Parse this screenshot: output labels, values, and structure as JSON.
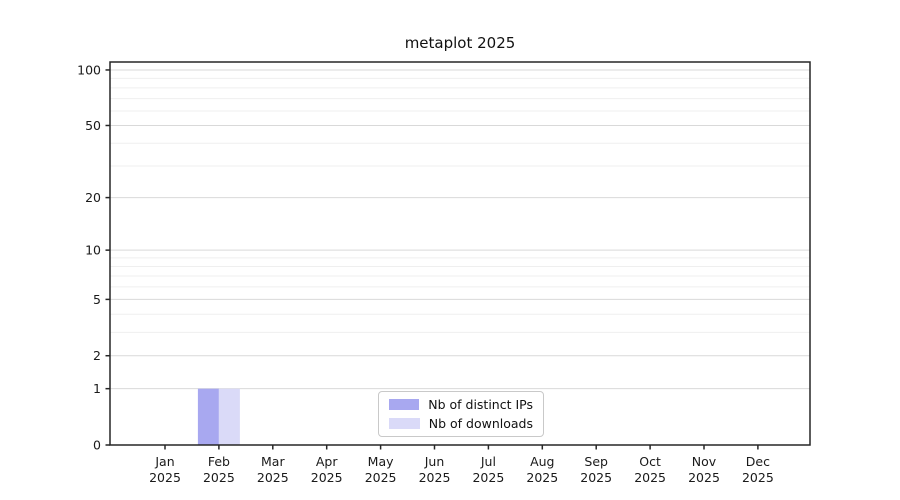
{
  "chart_data": {
    "type": "bar",
    "title": "metaplot 2025",
    "categories": [
      {
        "month": "Jan",
        "year": "2025"
      },
      {
        "month": "Feb",
        "year": "2025"
      },
      {
        "month": "Mar",
        "year": "2025"
      },
      {
        "month": "Apr",
        "year": "2025"
      },
      {
        "month": "May",
        "year": "2025"
      },
      {
        "month": "Jun",
        "year": "2025"
      },
      {
        "month": "Jul",
        "year": "2025"
      },
      {
        "month": "Aug",
        "year": "2025"
      },
      {
        "month": "Sep",
        "year": "2025"
      },
      {
        "month": "Oct",
        "year": "2025"
      },
      {
        "month": "Nov",
        "year": "2025"
      },
      {
        "month": "Dec",
        "year": "2025"
      }
    ],
    "series": [
      {
        "name": "Nb of distinct IPs",
        "color": "#a8a8f0",
        "values": [
          0,
          1,
          0,
          0,
          0,
          0,
          0,
          0,
          0,
          0,
          0,
          0
        ]
      },
      {
        "name": "Nb of downloads",
        "color": "#dadaf8",
        "values": [
          0,
          1,
          0,
          0,
          0,
          0,
          0,
          0,
          0,
          0,
          0,
          0
        ]
      }
    ],
    "y_axis": {
      "scale": "log1p",
      "ticks": [
        0,
        1,
        2,
        5,
        10,
        20,
        50,
        100
      ],
      "tick_labels": [
        "0",
        "1",
        "2",
        "5",
        "10",
        "20",
        "50",
        "100"
      ],
      "minor_ticks": [
        3,
        4,
        6,
        7,
        8,
        9,
        30,
        40,
        60,
        70,
        80,
        90
      ],
      "min": 0,
      "max": 110.4
    },
    "xlabel": "",
    "ylabel": "",
    "grid": "horizontal",
    "legend": {
      "position": "lower center"
    },
    "colors": {
      "spine": "#262626",
      "grid_major": "#d9d9d9",
      "grid_minor": "#efefef",
      "text": "#1a1a1a",
      "background": "#ffffff"
    }
  }
}
